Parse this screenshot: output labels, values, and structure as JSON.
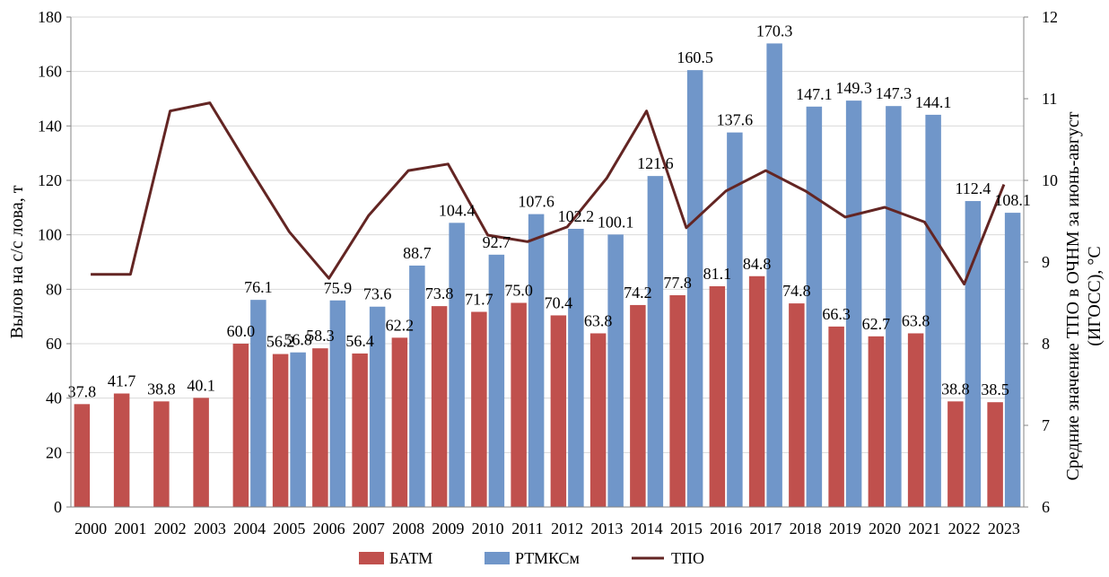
{
  "chart_data": {
    "type": "bar",
    "categories": [
      "2000",
      "2001",
      "2002",
      "2003",
      "2004",
      "2005",
      "2006",
      "2007",
      "2008",
      "2009",
      "2010",
      "2011",
      "2012",
      "2013",
      "2014",
      "2015",
      "2016",
      "2017",
      "2018",
      "2019",
      "2020",
      "2021",
      "2022",
      "2023"
    ],
    "series": [
      {
        "name": "БАТМ",
        "type": "bar",
        "axis": "left",
        "color": "#C0504D",
        "values": [
          37.8,
          41.7,
          38.8,
          40.1,
          60.0,
          56.2,
          58.3,
          56.4,
          62.2,
          73.8,
          71.7,
          75.0,
          70.4,
          63.8,
          74.2,
          77.8,
          81.1,
          84.8,
          74.8,
          66.3,
          62.7,
          63.8,
          38.8,
          38.5
        ],
        "labels": [
          "37.8",
          "41.7",
          "38.8",
          "40.1",
          "60.0",
          "56.2",
          "58.3",
          "56.4",
          "62.2",
          "73.8",
          "71.7",
          "75.0",
          "70.4",
          "63.8",
          "74.2",
          "77.8",
          "81.1",
          "84.8",
          "74.8",
          "66.3",
          "62.7",
          "63.8",
          "38.8",
          "38.5"
        ]
      },
      {
        "name": "РТМКСм",
        "type": "bar",
        "axis": "left",
        "color": "#7096C9",
        "values": [
          null,
          null,
          null,
          null,
          76.1,
          56.8,
          75.9,
          73.6,
          88.7,
          104.4,
          92.7,
          107.6,
          102.2,
          100.1,
          121.6,
          160.5,
          137.6,
          170.3,
          147.1,
          149.3,
          147.3,
          144.1,
          112.4,
          108.1
        ],
        "labels": [
          "",
          "",
          "",
          "",
          "76.1",
          "56.8",
          "75.9",
          "73.6",
          "88.7",
          "104.4",
          "92.7",
          "107.6",
          "102.2",
          "100.1",
          "121.6",
          "160.5",
          "137.6",
          "170.3",
          "147.1",
          "149.3",
          "147.3",
          "144.1",
          "112.4",
          "108.1"
        ]
      },
      {
        "name": "ТПО",
        "type": "line",
        "axis": "right",
        "color": "#632523",
        "values": [
          8.85,
          8.85,
          10.85,
          10.95,
          10.15,
          9.37,
          8.8,
          9.57,
          10.12,
          10.2,
          9.33,
          9.25,
          9.43,
          10.03,
          10.85,
          9.42,
          9.87,
          10.12,
          9.87,
          9.55,
          9.67,
          9.49,
          8.73,
          9.95
        ]
      }
    ],
    "yaxis_left": {
      "label": "Вылов на с/с лова, т",
      "ylim": [
        0,
        180
      ],
      "ticks": [
        "0",
        "20",
        "40",
        "60",
        "80",
        "100",
        "120",
        "140",
        "160",
        "180"
      ]
    },
    "yaxis_right": {
      "label_line1": "Средние значение ТПО в ОЧНМ за июнь-август",
      "label_line2": "(ИГОСС), °С",
      "ylim": [
        6,
        12
      ],
      "ticks": [
        "6",
        "7",
        "8",
        "9",
        "10",
        "11",
        "12"
      ]
    },
    "grid": "horizontal",
    "legend_placement": "bottom-center",
    "legend": [
      "БАТМ",
      "РТМКСм",
      "ТПО"
    ]
  }
}
